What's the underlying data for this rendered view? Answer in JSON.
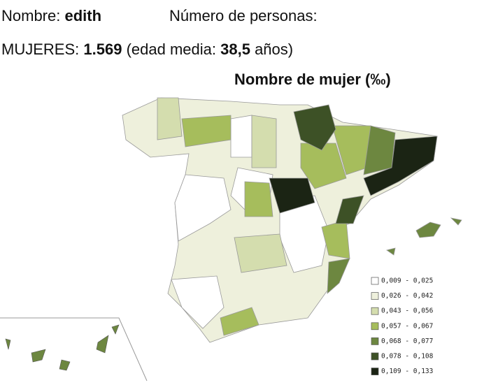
{
  "header": {
    "name_label": "Nombre:",
    "name": "edith",
    "count_label": "Número de personas:"
  },
  "stats": {
    "women_label": "MUJERES:",
    "women": "1.569",
    "age_label": "(edad media:",
    "age": "38,5",
    "age_unit": "años)"
  },
  "map": {
    "title": "Nombre de mujer (‰)",
    "legend": [
      {
        "label": "0,009 - 0,025",
        "color": "#ffffff"
      },
      {
        "label": "0,026 - 0,042",
        "color": "#eef0dc"
      },
      {
        "label": "0,043 - 0,056",
        "color": "#d4ddae"
      },
      {
        "label": "0,057 - 0,067",
        "color": "#a6bd5c"
      },
      {
        "label": "0,068 - 0,077",
        "color": "#6d8740"
      },
      {
        "label": "0,078 - 0,108",
        "color": "#3d5126"
      },
      {
        "label": "0,109 - 0,133",
        "color": "#1b2414"
      }
    ]
  }
}
